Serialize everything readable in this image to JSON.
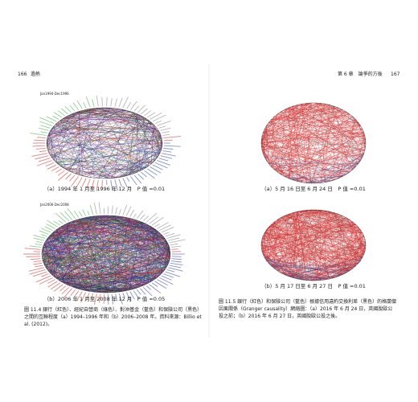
{
  "header": {
    "left_page_number": "166",
    "left_title": "過熱",
    "right_title": "第 6 章　論爭的方後",
    "right_page_number": "167"
  },
  "figure_11_4": {
    "panel_a_label": "Jan1994-Dec1996",
    "panel_a_caption": "（a）1994 年 1 月至 1996 年 12 月　P 值 =0.01",
    "panel_b_label": "Jan2006-Dec2008",
    "panel_b_caption": "（b）2006 年 1 月至 2008 年 12 月　P 值 =0.05",
    "caption": "圖 11.4 銀行（紅色）、經紀自營商（綠色）、對沖基金（藍色）和保險公司（黑色）之間的互聯程度（a）1994–1996 年和（b）2006–2008 年。資料來源：Billio et al. (2012)。"
  },
  "figure_11_5": {
    "panel_a_caption": "（a）5 月 16 日至 6 月 24 日　P 值 =0.01",
    "panel_b_caption": "（b）5 月 17 日至 6 月 27 日　P 值 =0.01",
    "caption": "圖 11.5 銀行（紅色）和保險公司（藍色）根據信用違約交換利差（黑色）的格蘭傑因果關係（Granger causality）網絡圖：（a）2016 年 6 月 24 日，英國脫歐公投之前；（b）2016 年 6 月 27 日，英國脫歐公投之後。"
  }
}
